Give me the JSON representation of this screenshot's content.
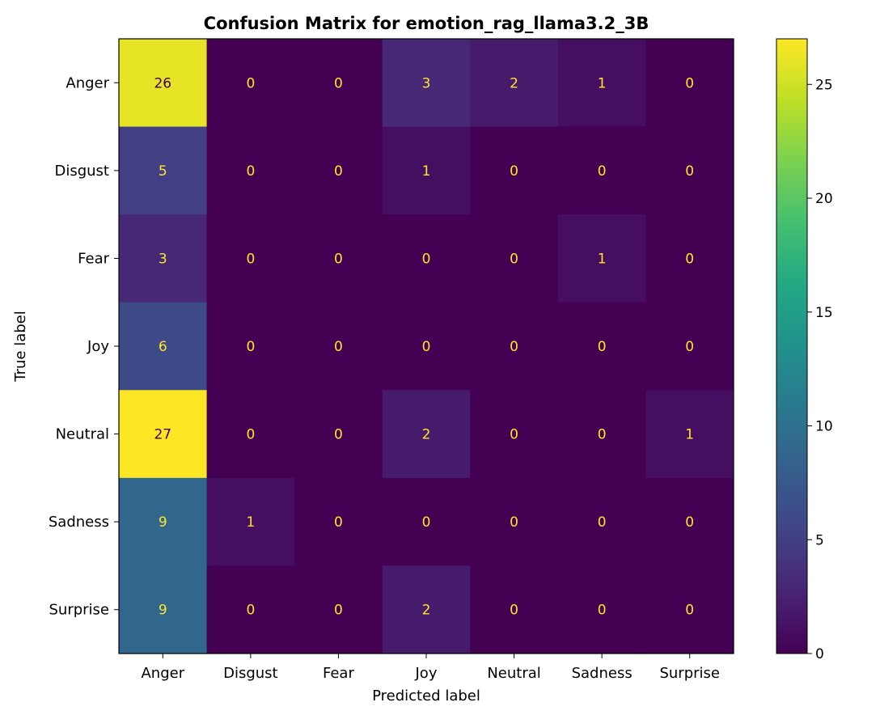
{
  "chart_data": {
    "type": "heatmap",
    "title": "Confusion Matrix for emotion_rag_llama3.2_3B",
    "xlabel": "Predicted label",
    "ylabel": "True label",
    "x_categories": [
      "Anger",
      "Disgust",
      "Fear",
      "Joy",
      "Neutral",
      "Sadness",
      "Surprise"
    ],
    "y_categories": [
      "Anger",
      "Disgust",
      "Fear",
      "Joy",
      "Neutral",
      "Sadness",
      "Surprise"
    ],
    "values": [
      [
        26,
        0,
        0,
        3,
        2,
        1,
        0
      ],
      [
        5,
        0,
        0,
        1,
        0,
        0,
        0
      ],
      [
        3,
        0,
        0,
        0,
        0,
        1,
        0
      ],
      [
        6,
        0,
        0,
        0,
        0,
        0,
        0
      ],
      [
        27,
        0,
        0,
        2,
        0,
        0,
        1
      ],
      [
        9,
        1,
        0,
        0,
        0,
        0,
        0
      ],
      [
        9,
        0,
        0,
        2,
        0,
        0,
        0
      ]
    ],
    "colormap": "viridis",
    "color_range": [
      0,
      27
    ],
    "colorbar_ticks": [
      0,
      5,
      10,
      15,
      20,
      25
    ],
    "grid": false
  }
}
